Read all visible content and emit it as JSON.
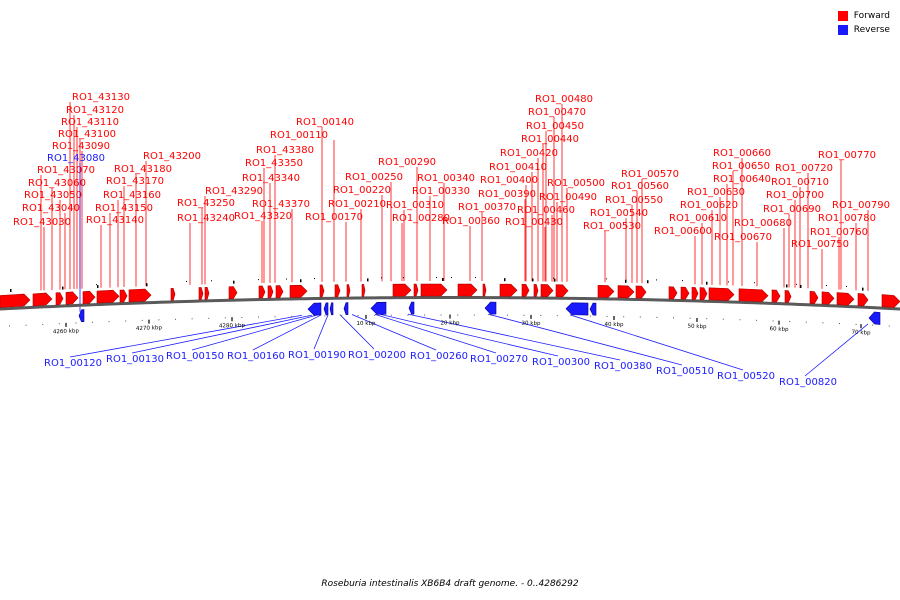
{
  "colors": {
    "forward": "#ff0000",
    "reverse": "#1a1aff",
    "backbone": "#5a5a5a"
  },
  "legend": [
    {
      "key": "forward",
      "label": "Forward"
    },
    {
      "key": "reverse",
      "label": "Reverse"
    }
  ],
  "caption": "Roseburia intestinalis XB6B4 draft genome. - 0..4286292",
  "ticks": [
    {
      "label": "4260 kbp"
    },
    {
      "label": "4270 kbp"
    },
    {
      "label": "4280 kbp"
    },
    {
      "label": "10 kbp"
    },
    {
      "label": "20 kbp"
    },
    {
      "label": "30 kbp"
    },
    {
      "label": "40 kbp"
    },
    {
      "label": "50 kbp"
    },
    {
      "label": "60 kbp"
    },
    {
      "label": "70 kbp"
    }
  ],
  "forward_labels": [
    "RO1_43130",
    "RO1_43120",
    "RO1_43110",
    "RO1_43100",
    "RO1_43090",
    "RO1_43070",
    "RO1_43060",
    "RO1_43050",
    "RO1_43040",
    "RO1_43030",
    "RO1_43200",
    "RO1_43180",
    "RO1_43170",
    "RO1_43160",
    "RO1_43150",
    "RO1_43140",
    "RO1_43290",
    "RO1_43250",
    "RO1_43240",
    "RO1_00140",
    "RO1_00110",
    "RO1_43380",
    "RO1_43350",
    "RO1_43340",
    "RO1_43370",
    "RO1_43320",
    "RO1_00170",
    "RO1_00290",
    "RO1_00250",
    "RO1_00340",
    "RO1_00220",
    "RO1_00330",
    "RO1_00210",
    "RO1_00310",
    "RO1_00280",
    "RO1_00480",
    "RO1_00470",
    "RO1_00450",
    "RO1_00440",
    "RO1_00420",
    "RO1_00410",
    "RO1_00400",
    "RO1_00390",
    "RO1_00370",
    "RO1_00360",
    "RO1_00500",
    "RO1_00490",
    "RO1_00460",
    "RO1_00430",
    "RO1_00570",
    "RO1_00560",
    "RO1_00550",
    "RO1_00540",
    "RO1_00530",
    "RO1_00660",
    "RO1_00650",
    "RO1_00640",
    "RO1_00630",
    "RO1_00620",
    "RO1_00610",
    "RO1_00600",
    "RO1_00670",
    "RO1_00680",
    "RO1_00770",
    "RO1_00720",
    "RO1_00710",
    "RO1_00700",
    "RO1_00690",
    "RO1_00790",
    "RO1_00780",
    "RO1_00760",
    "RO1_00750"
  ],
  "reverse_labels": [
    "RO1_43080",
    "RO1_00120",
    "RO1_00130",
    "RO1_00150",
    "RO1_00160",
    "RO1_00190",
    "RO1_00200",
    "RO1_00260",
    "RO1_00270",
    "RO1_00300",
    "RO1_00380",
    "RO1_00510",
    "RO1_00520",
    "RO1_00820"
  ]
}
